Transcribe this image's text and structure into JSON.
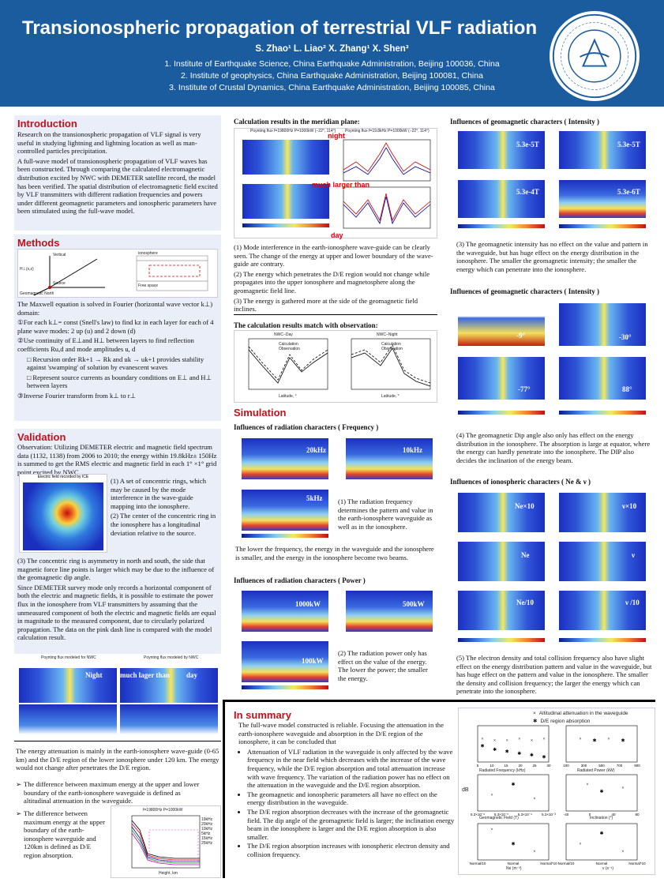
{
  "header": {
    "title": "Transionospheric propagation of terrestrial VLF radiation",
    "authors": "S. Zhao¹ L. Liao² X. Zhang¹ X. Shen³",
    "affiliations": [
      "1. Institute of Earthquake Science, China Earthquake Administration, Beijing 100036, China",
      "2. Institute of geophysics, China Earthquake Administration, Beijing 100081, China",
      "3. Institute of Crustal Dynamics, China Earthquake Administration, Beijing 100085, China"
    ],
    "logo_text": "中国地震局地震预测研究所 Institute of Earthquake Forecasting, CEA"
  },
  "introduction": {
    "title": "Introduction",
    "p1": "Research on the transionospheric propagation of VLF signal is very useful in studying lightning and lightning location as well as man-controlled particles precipitation.",
    "p2": "A full-wave model of transionospheric propagation of VLF waves has been constructed. Through comparing the calculated electromagnetic distribution excited by NWC with DEMETER satellite record, the model has been verified. The spatial distribution of electromagnetic field excited by VLF transmitters with different radiation frequencies and powers under different geomagnetic parameters and ionospheric parameters have been stimulated using the full-wave model."
  },
  "methods": {
    "title": "Methods",
    "diagram_labels": [
      "Vertical",
      "H⊥(x,z)",
      "Source",
      "Geomagnetic North",
      "ionosphere",
      "Free space"
    ],
    "intro": "The Maxwell equation is solved in Fourier (horizontal wave vector k⊥) domain:",
    "steps": [
      "①For each k⊥= const (Snell's law) to find kz in each layer for each of 4 plane wave modes: 2 up (u) and 2 down (d)",
      "②Use continuity of E⊥and H⊥ between layers to find reflection coefficients Ru,d and mode amplitudes u, d",
      "□ Recursion order Rk+1 → Rk and uk → uk+1 provides stability against 'swamping' of solution by evanescent waves",
      "□ Represent source currents as boundary conditions on E⊥ and H⊥ between layers",
      "③Inverse Fourier transform from k⊥ to r⊥"
    ]
  },
  "validation": {
    "title": "Validation",
    "obs": "Observation: Utilizing DEMETER electric and magnetic field spectrum data (1132, 1138) from 2006 to 2010; the energy within 19.8kHz± 150Hz is summed to get the RMS electric and magnetic field in each 1° ×1° grid point excited by NWC.",
    "map_title": "Electric field recorded by ICE",
    "p1": "(1) A set of concentric rings, which may be caused by the mode interference in the wave-guide mapping into the ionosphere.",
    "p2": "(2) The center of the concentric ring in the ionosphere has a longitudinal deviation relative to the source.",
    "p3": "(3) The concentric ring is asymmetry in north and south, the side that magnetic force line points is larger which may be due to the influence of the geomagnetic dip angle.",
    "p4": "Since DEMETER survey mode only records a horizontal component of both the electric and magnetic fields, it is possible to estimate the power flux in the ionosphere from VLF transmitters by assuming that the unmeasured component of both the electric and magnetic fields are equal in magnitude to the measured component, due to circularly polarized propagation. The data on the pink dash line is compared with the model calculation result.",
    "fig_titles": [
      "Poynting flux modeled for NWC",
      "Poynting flux modeled by NWC"
    ],
    "fig_labels": [
      "Night",
      "much lager than",
      "day"
    ]
  },
  "meridian": {
    "title": "Calculation results in the meridian plane:",
    "labels": [
      "night",
      "much larger than",
      "day"
    ],
    "panel_titles": [
      "Poynting flux f=19800Hz P=1000kW (−22°, 114°)",
      "Poynting flux f=19.8kHz P=1000kW (−22°, 114°)"
    ],
    "notes": [
      "(1) Mode interference in the earth-ionosphere wave-guide can be clearly seen. The change of the energy at upper and lower boundary of the wave-guide are contrary.",
      "(2) The energy which penetrates the D/E region would not change while propagates into the upper ionosphere and magnetosphere along the geomagnetic field line.",
      "(3) The energy is gathered more at the side of the geomagnetic field inclines."
    ]
  },
  "match": {
    "title": "The calculation results match with observation:",
    "charts": [
      "NWC−Day",
      "NWC−Night"
    ],
    "legend": [
      "Calculation",
      "Observation"
    ],
    "xlabel": "Latitude, °",
    "ylabel": "S, dB/W/m²"
  },
  "simulation": {
    "title": "Simulation",
    "freq_title": "Influences of radiation characters ( Frequency )",
    "freq_labels": [
      "20kHz",
      "10kHz",
      "5kHz"
    ],
    "freq_note": "(1) The radiation frequency determines the pattern and value in the earth-ionosphere waveguide as well as in the ionosphere.",
    "freq_note2": "The lower the frequency, the energy in the waveguide and the ionosphere is smaller, and the energy in the ionosphere become two beams.",
    "power_title": "Influences of radiation characters ( Power )",
    "power_labels": [
      "1000kW",
      "500kW",
      "100kW"
    ],
    "power_note": "(2) The radiation power only has effect on the value of the energy. The lower the power; the smaller the energy."
  },
  "geomag_intensity": {
    "title": "Influences of geomagnetic characters ( Intensity )",
    "labels": [
      "5.3e-5T",
      "5.3e-5T",
      "5.3e-4T",
      "5.3e-6T"
    ],
    "note": "(3) The geomagnetic intensity has no effect on the value and pattern in the waveguide, but has huge effect on the energy distribution in the ionosphere. The smaller the geomagnetic intensity; the smaller the energy which can penetrate into the ionosphere."
  },
  "geomag_dip": {
    "title": "Influences of geomagnetic characters ( Intensity )",
    "labels": [
      "-9°",
      "-30°",
      "-77°",
      "88°"
    ],
    "note": "(4) The geomagnetic Dip angle also only has effect on the energy distribution in the ionosphere. The absorption is large at equator, where the energy can hardly penetrate into the ionosphere. The DIP also decides the inclination of the energy beam."
  },
  "iono": {
    "title": "Influences of ionospheric characters ( Ne & ν )",
    "labels": [
      "Ne×10",
      "ν×10",
      "Ne",
      "ν",
      "Ne/10",
      "ν /10"
    ],
    "note": "(5) The electron density and total collision frequency also have slight effect on the energy distribution pattern and value in the waveguide, but has huge effect on the pattern and value in the ionosphere. The smaller the density and collision frequency; the larger the energy which can penetrate into the ionosphere."
  },
  "attenuation": {
    "p1": "The energy attenuation is mainly in the earth-ionosphere wave-guide (0-65 km) and the D/E region of the lower ionosphere under 120 km. The energy would not change after penetrates the D/E region.",
    "b1": "The difference between maximum energy at the upper and lower boundary of the earth-ionosphere waveguide is defined as altitudinal attenuation in the waveguide.",
    "b2": "The difference between maximum energy at the upper boundary of the earth-ionosphere waveguide and 120km is defined as D/E region absorption.",
    "chart_title": "f=19800Hz P=1000kW",
    "xlabel": "Height, km",
    "legend": [
      "19kHz",
      "20kHz",
      "10kHz",
      "5kHz",
      "15kHz",
      "25kHz"
    ]
  },
  "summary": {
    "title": "In summary",
    "intro": "The full-wave model constructed is reliable. Focusing the attenuation in the earth-ionosphere waveguide and absorption in the D/E region of the ionosphere, it can be concluded that",
    "bullets": [
      "Attenuation of VLF radiation in the waveguide is only affected by the wave frequency in the near field which decreases with the increase of the wave frequency, while the D/E region absorption and total attenuation increase with wave frequency. The variation of the radiation power has no effect on the attenuation in the waveguide and the D/E region absorption.",
      "The geomagnetic and ionospheric parameters all have no effect on the energy distribution in the waveguide.",
      "The D/E region absorption decreases with the increase of the geomagnetic field. The dip angle of the geomagnetic field is larger; the inclination energy beam in the ionosphere is larger and the D/E region absorption is also smaller.",
      "The D/E region absorption increases with ionospheric electron density and collision frequency."
    ]
  },
  "summary_chart": {
    "legend": [
      "Altitudinal attenuation in the waveguide",
      "D/E region absorption"
    ],
    "ylabel": "dB",
    "panels": [
      {
        "xlabel": "Radiated Frequency (kHz)",
        "ticks": [
          "5",
          "10",
          "15",
          "20",
          "25",
          "30"
        ]
      },
      {
        "xlabel": "Radiated Power (kW)",
        "ticks": [
          "100",
          "300",
          "500",
          "700",
          "900"
        ]
      },
      {
        "xlabel": "Geomagnetic Field (T)",
        "ticks": [
          "5.3×10⁻⁶",
          "5.3×10⁻⁵",
          "5.3×10⁻⁴",
          "5.3×10⁻³"
        ]
      },
      {
        "xlabel": "Inclination (°)",
        "ticks": [
          "-40",
          "0",
          "40",
          "80"
        ]
      },
      {
        "xlabel": "Ne (m⁻³)",
        "ticks": [
          "Normal/10",
          "Normal",
          "Normal*10"
        ]
      },
      {
        "xlabel": "ν (s⁻¹)",
        "ticks": [
          "Normal/10",
          "Normal",
          "Normal*10"
        ]
      }
    ]
  },
  "chart_data": {
    "type": "scatter",
    "title": "",
    "ylabel": "dB",
    "series": [
      {
        "name": "Altitudinal attenuation in the waveguide",
        "values": [
          -18,
          -19,
          -19,
          -18,
          -19,
          -18
        ]
      },
      {
        "name": "D/E region absorption",
        "values": [
          -22,
          -24,
          -25,
          -26,
          -27,
          -28
        ]
      }
    ],
    "categories": [
      "5",
      "10",
      "15",
      "20",
      "25",
      "30"
    ],
    "xlabel": "Radiated Frequency (kHz)",
    "ylim": [
      -30,
      -10
    ]
  }
}
